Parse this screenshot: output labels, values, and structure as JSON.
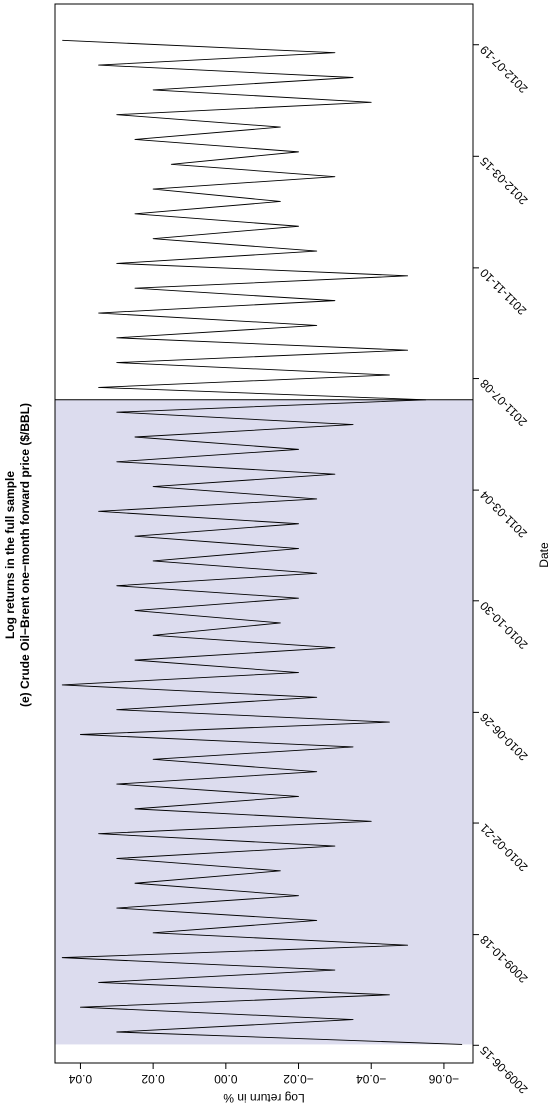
{
  "chart_data": {
    "type": "line",
    "title": "Log returns in the full sample",
    "subtitle": "(e) Crude Oil−Brent one−month forward price ($/BBL)",
    "x_label": "Date",
    "y_label": "Log return in %",
    "xlim": [
      "2009-05-26",
      "2012-09-03"
    ],
    "xticks": [
      "2009-06-15",
      "2009-10-18",
      "2010-02-21",
      "2010-06-26",
      "2010-10-30",
      "2011-03-04",
      "2011-07-08",
      "2011-11-10",
      "2012-03-15",
      "2012-07-19"
    ],
    "ylim": [
      -0.068,
      0.047
    ],
    "yticks": [
      0.04,
      0.02,
      {
        "value": 0,
        "label": "0.00"
      },
      {
        "value": -0.02,
        "label": "−0.02"
      },
      {
        "value": -0.04,
        "label": "−0.04"
      },
      {
        "value": -0.06,
        "label": "−0.06"
      }
    ],
    "shaded_range": [
      "2009-06-16",
      "2011-06-14"
    ],
    "shade_color": "#dcdcee",
    "x": [
      "2009-06-16",
      "2009-06-30",
      "2009-07-14",
      "2009-07-28",
      "2009-08-11",
      "2009-08-25",
      "2009-09-08",
      "2009-09-22",
      "2009-10-06",
      "2009-10-20",
      "2009-11-03",
      "2009-11-17",
      "2009-12-01",
      "2009-12-15",
      "2009-12-29",
      "2010-01-12",
      "2010-01-26",
      "2010-02-09",
      "2010-02-23",
      "2010-03-09",
      "2010-03-23",
      "2010-04-06",
      "2010-04-20",
      "2010-05-04",
      "2010-05-18",
      "2010-06-01",
      "2010-06-15",
      "2010-06-29",
      "2010-07-13",
      "2010-07-27",
      "2010-08-10",
      "2010-08-24",
      "2010-09-07",
      "2010-09-21",
      "2010-10-05",
      "2010-10-19",
      "2010-11-02",
      "2010-11-16",
      "2010-11-30",
      "2010-12-14",
      "2010-12-28",
      "2011-01-11",
      "2011-01-25",
      "2011-02-08",
      "2011-02-22",
      "2011-03-08",
      "2011-03-22",
      "2011-04-05",
      "2011-04-19",
      "2011-05-03",
      "2011-05-17",
      "2011-05-31",
      "2011-06-14",
      "2011-06-28",
      "2011-07-12",
      "2011-07-26",
      "2011-08-09",
      "2011-08-23",
      "2011-09-06",
      "2011-09-20",
      "2011-10-04",
      "2011-10-18",
      "2011-11-01",
      "2011-11-15",
      "2011-11-29",
      "2011-12-13",
      "2011-12-27",
      "2012-01-10",
      "2012-01-24",
      "2012-02-07",
      "2012-02-21",
      "2012-03-06",
      "2012-03-20",
      "2012-04-03",
      "2012-04-17",
      "2012-05-01",
      "2012-05-15",
      "2012-05-29",
      "2012-06-12",
      "2012-06-26",
      "2012-07-10",
      "2012-07-24"
    ],
    "series": [
      {
        "color": "#000000",
        "values": [
          -0.065,
          0.03,
          -0.035,
          0.04,
          -0.045,
          0.035,
          -0.03,
          0.045,
          -0.05,
          0.02,
          -0.025,
          0.03,
          -0.02,
          0.025,
          -0.015,
          0.03,
          -0.03,
          0.035,
          -0.04,
          0.025,
          -0.02,
          0.03,
          -0.025,
          0.02,
          -0.035,
          0.04,
          -0.045,
          0.03,
          -0.025,
          0.045,
          -0.02,
          0.025,
          -0.03,
          0.02,
          -0.015,
          0.025,
          -0.02,
          0.03,
          -0.025,
          0.02,
          -0.02,
          0.025,
          -0.02,
          0.035,
          -0.025,
          0.02,
          -0.03,
          0.03,
          -0.02,
          0.025,
          -0.035,
          0.03,
          -0.055,
          0.035,
          -0.045,
          0.03,
          -0.05,
          0.03,
          -0.025,
          0.035,
          -0.03,
          0.025,
          -0.05,
          0.03,
          -0.025,
          0.02,
          -0.02,
          0.025,
          -0.015,
          0.02,
          -0.03,
          0.015,
          -0.02,
          0.025,
          -0.015,
          0.03,
          -0.04,
          0.02,
          -0.035,
          0.035,
          -0.03,
          0.045
        ]
      }
    ]
  }
}
